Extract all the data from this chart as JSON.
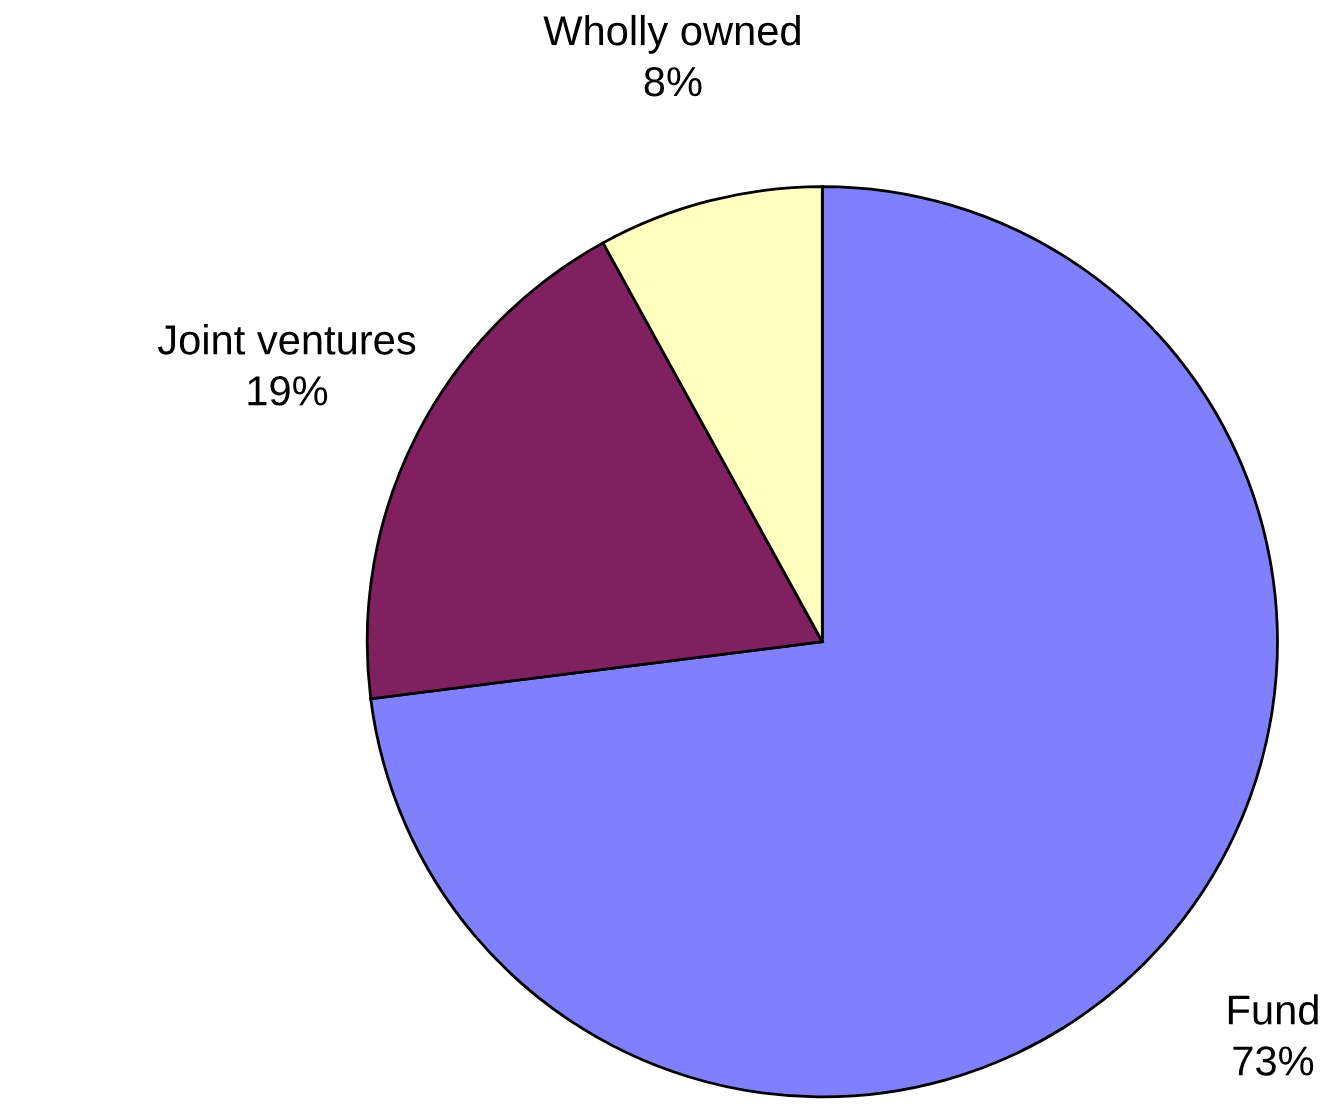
{
  "chart_data": {
    "type": "pie",
    "categories": [
      "Fund",
      "Joint ventures",
      "Wholly owned"
    ],
    "values": [
      73,
      19,
      8
    ],
    "colors": [
      "#8080ff",
      "#802060",
      "#ffffc0"
    ],
    "value_labels": [
      "73%",
      "19%",
      "8%"
    ],
    "legend": false
  }
}
